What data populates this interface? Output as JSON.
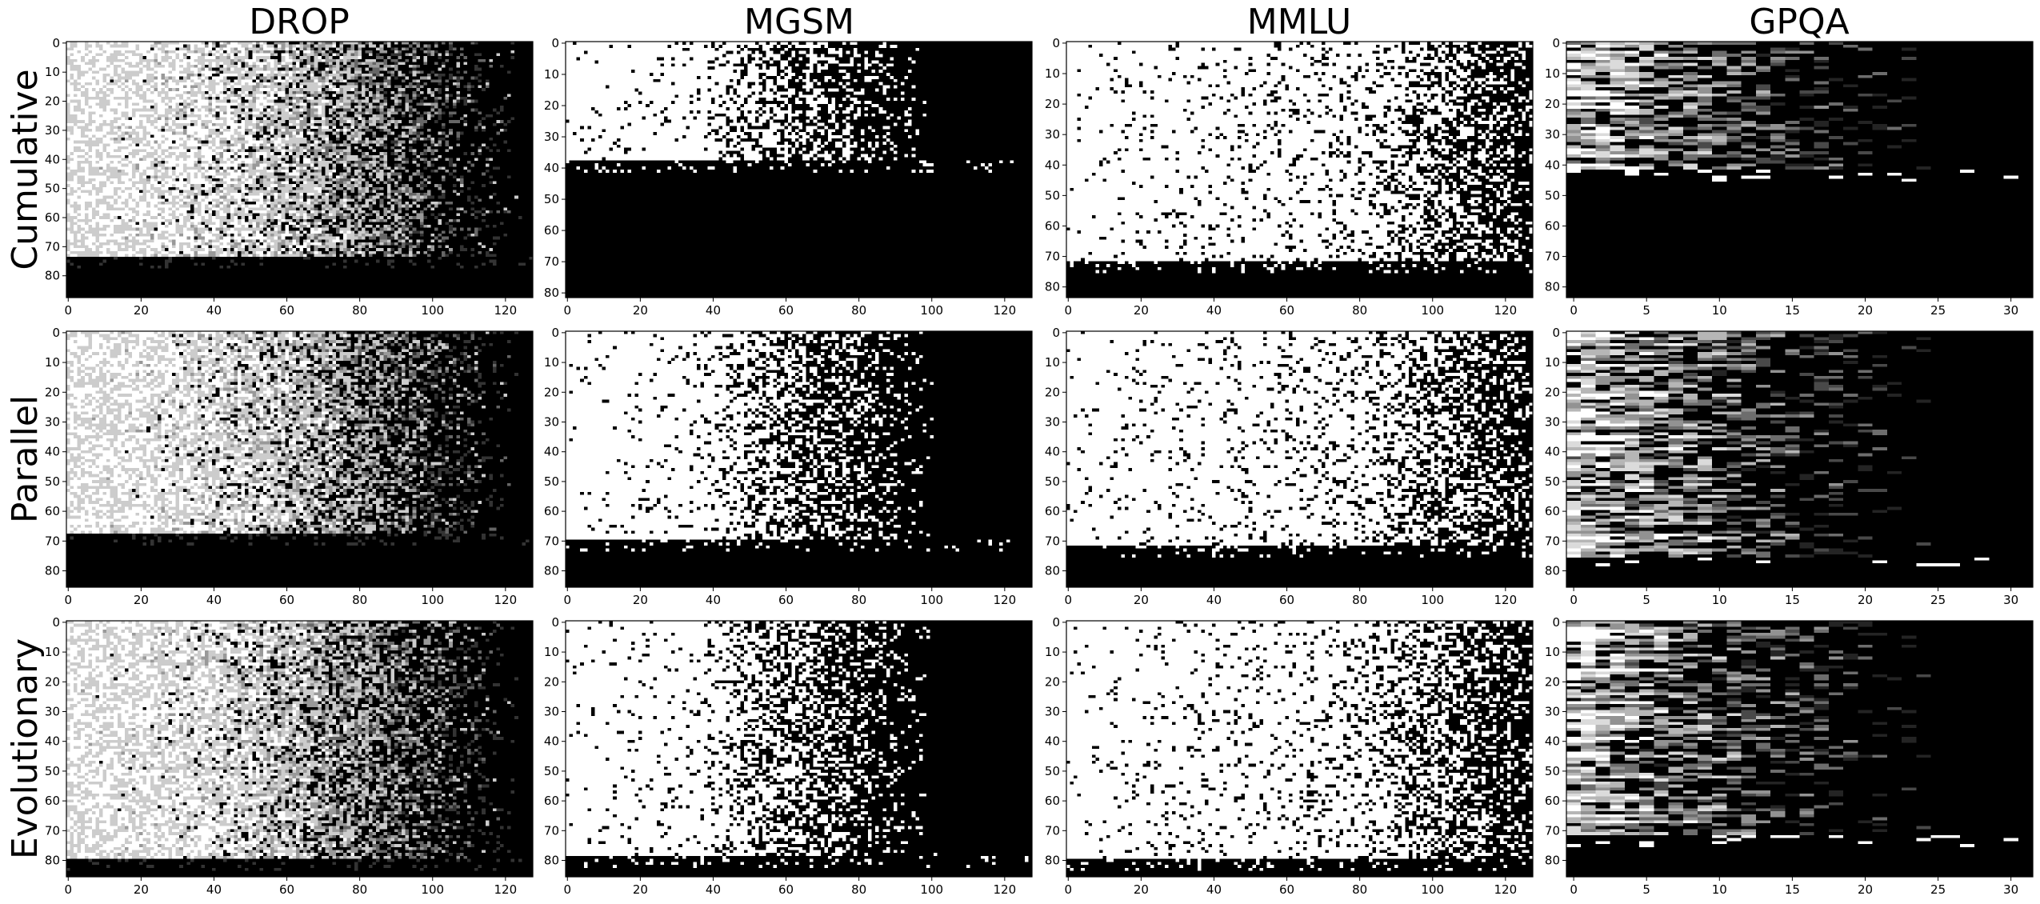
{
  "chart_data": {
    "type": "heatmap",
    "colormap": "grayscale (white = high, black = low)",
    "columns": [
      "DROP",
      "MGSM",
      "MMLU",
      "GPQA"
    ],
    "rows": [
      "Cumulative",
      "Parallel",
      "Evolutionary"
    ],
    "panels": [
      {
        "row": "Cumulative",
        "col": "DROP",
        "n_cols": 128,
        "n_rows": 88,
        "xlim": [
          0,
          127
        ],
        "ylim": [
          87,
          0
        ],
        "xticks": [
          "0",
          "20",
          "40",
          "60",
          "80",
          "100",
          "120"
        ],
        "yticks": [
          "0",
          "10",
          "20",
          "30",
          "40",
          "50",
          "60",
          "70",
          "80"
        ],
        "dark_from_row": 74,
        "steps": 6
      },
      {
        "row": "Cumulative",
        "col": "MGSM",
        "n_cols": 128,
        "n_rows": 82,
        "xlim": [
          0,
          127
        ],
        "ylim": [
          81,
          0
        ],
        "xticks": [
          "0",
          "20",
          "40",
          "60",
          "80",
          "100",
          "120"
        ],
        "yticks": [
          "0",
          "10",
          "20",
          "30",
          "40",
          "50",
          "60",
          "70",
          "80"
        ],
        "dark_from_row": 38,
        "steps": 2
      },
      {
        "row": "Cumulative",
        "col": "MMLU",
        "n_cols": 128,
        "n_rows": 84,
        "xlim": [
          0,
          127
        ],
        "ylim": [
          83,
          0
        ],
        "xticks": [
          "0",
          "20",
          "40",
          "60",
          "80",
          "100",
          "120"
        ],
        "yticks": [
          "0",
          "10",
          "20",
          "30",
          "40",
          "50",
          "60",
          "70",
          "80"
        ],
        "dark_from_row": 72,
        "steps": 2
      },
      {
        "row": "Cumulative",
        "col": "GPQA",
        "n_cols": 32,
        "n_rows": 84,
        "xlim": [
          0,
          31
        ],
        "ylim": [
          83,
          0
        ],
        "xticks": [
          "0",
          "5",
          "10",
          "15",
          "20",
          "25",
          "30"
        ],
        "yticks": [
          "0",
          "10",
          "20",
          "30",
          "40",
          "50",
          "60",
          "70",
          "80"
        ],
        "dark_from_row": 42,
        "steps": 8
      },
      {
        "row": "Parallel",
        "col": "DROP",
        "n_cols": 128,
        "n_rows": 86,
        "xlim": [
          0,
          127
        ],
        "ylim": [
          85,
          0
        ],
        "xticks": [
          "0",
          "20",
          "40",
          "60",
          "80",
          "100",
          "120"
        ],
        "yticks": [
          "0",
          "10",
          "20",
          "30",
          "40",
          "50",
          "60",
          "70",
          "80"
        ],
        "dark_from_row": 68,
        "steps": 6
      },
      {
        "row": "Parallel",
        "col": "MGSM",
        "n_cols": 128,
        "n_rows": 86,
        "xlim": [
          0,
          127
        ],
        "ylim": [
          85,
          0
        ],
        "xticks": [
          "0",
          "20",
          "40",
          "60",
          "80",
          "100",
          "120"
        ],
        "yticks": [
          "0",
          "10",
          "20",
          "30",
          "40",
          "50",
          "60",
          "70",
          "80"
        ],
        "dark_from_row": 70,
        "steps": 2
      },
      {
        "row": "Parallel",
        "col": "MMLU",
        "n_cols": 128,
        "n_rows": 86,
        "xlim": [
          0,
          127
        ],
        "ylim": [
          85,
          0
        ],
        "xticks": [
          "0",
          "20",
          "40",
          "60",
          "80",
          "100",
          "120"
        ],
        "yticks": [
          "0",
          "10",
          "20",
          "30",
          "40",
          "50",
          "60",
          "70",
          "80"
        ],
        "dark_from_row": 72,
        "steps": 2
      },
      {
        "row": "Parallel",
        "col": "GPQA",
        "n_cols": 32,
        "n_rows": 86,
        "xlim": [
          0,
          31
        ],
        "ylim": [
          85,
          0
        ],
        "xticks": [
          "0",
          "5",
          "10",
          "15",
          "20",
          "25",
          "30"
        ],
        "yticks": [
          "0",
          "10",
          "20",
          "30",
          "40",
          "50",
          "60",
          "70",
          "80"
        ],
        "dark_from_row": 76,
        "steps": 8
      },
      {
        "row": "Evolutionary",
        "col": "DROP",
        "n_cols": 128,
        "n_rows": 86,
        "xlim": [
          0,
          127
        ],
        "ylim": [
          85,
          0
        ],
        "xticks": [
          "0",
          "20",
          "40",
          "60",
          "80",
          "100",
          "120"
        ],
        "yticks": [
          "0",
          "10",
          "20",
          "30",
          "40",
          "50",
          "60",
          "70",
          "80"
        ],
        "dark_from_row": 80,
        "steps": 6
      },
      {
        "row": "Evolutionary",
        "col": "MGSM",
        "n_cols": 128,
        "n_rows": 86,
        "xlim": [
          0,
          127
        ],
        "ylim": [
          85,
          0
        ],
        "xticks": [
          "0",
          "20",
          "40",
          "60",
          "80",
          "100",
          "120"
        ],
        "yticks": [
          "0",
          "10",
          "20",
          "30",
          "40",
          "50",
          "60",
          "70",
          "80"
        ],
        "dark_from_row": 79,
        "steps": 2
      },
      {
        "row": "Evolutionary",
        "col": "MMLU",
        "n_cols": 128,
        "n_rows": 86,
        "xlim": [
          0,
          127
        ],
        "ylim": [
          85,
          0
        ],
        "xticks": [
          "0",
          "20",
          "40",
          "60",
          "80",
          "100",
          "120"
        ],
        "yticks": [
          "0",
          "10",
          "20",
          "30",
          "40",
          "50",
          "60",
          "70",
          "80"
        ],
        "dark_from_row": 80,
        "steps": 2
      },
      {
        "row": "Evolutionary",
        "col": "GPQA",
        "n_cols": 32,
        "n_rows": 86,
        "xlim": [
          0,
          31
        ],
        "ylim": [
          85,
          0
        ],
        "xticks": [
          "0",
          "5",
          "10",
          "15",
          "20",
          "25",
          "30"
        ],
        "yticks": [
          "0",
          "10",
          "20",
          "30",
          "40",
          "50",
          "60",
          "70",
          "80"
        ],
        "dark_from_row": 72,
        "steps": 8
      }
    ]
  }
}
